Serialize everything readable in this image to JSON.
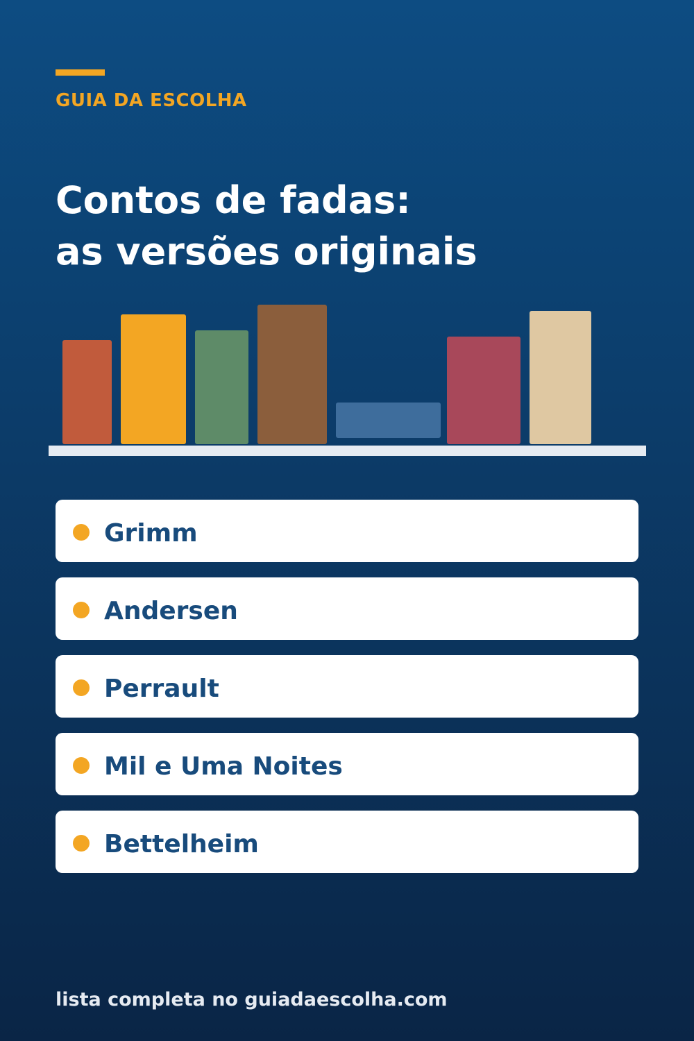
{
  "brand": "GUIA DA ESCOLHA",
  "title": {
    "line1": "Contos de fadas:",
    "line2": "as versões originais"
  },
  "books": [
    {
      "name": "book-1",
      "color": "#c15b3c"
    },
    {
      "name": "book-2",
      "color": "#f3a623"
    },
    {
      "name": "book-3",
      "color": "#5e8b68"
    },
    {
      "name": "book-4",
      "color": "#8b5e3c"
    },
    {
      "name": "book-5-lying",
      "color": "#3e6d9c"
    },
    {
      "name": "book-6",
      "color": "#a8485a"
    },
    {
      "name": "book-7",
      "color": "#dfc8a2"
    }
  ],
  "items": [
    {
      "label": "Grimm"
    },
    {
      "label": "Andersen"
    },
    {
      "label": "Perrault"
    },
    {
      "label": "Mil e Uma Noites"
    },
    {
      "label": "Bettelheim"
    }
  ],
  "footer": "lista completa no guiadaescolha.com",
  "colors": {
    "accent": "#f3a623",
    "item_text": "#184b7c",
    "background_top": "#0d4c82",
    "background_bottom": "#0a2546"
  }
}
